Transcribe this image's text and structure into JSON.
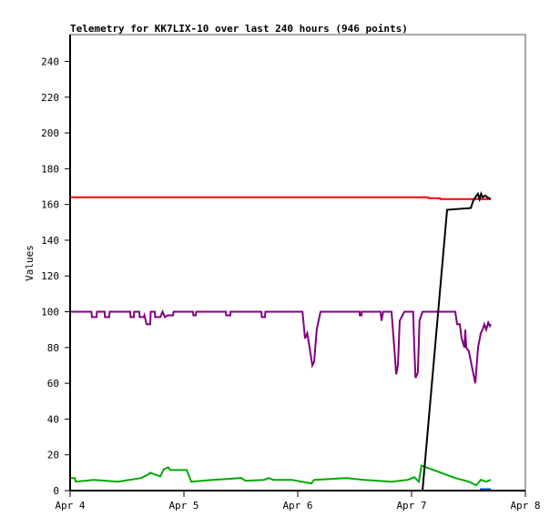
{
  "chart_data": {
    "type": "line",
    "title": "Telemetry for KK7LIX-10 over last 240 hours (946 points)",
    "xlabel": "",
    "ylabel": "Values",
    "xlim": [
      "Apr 4 00:00",
      "Apr 8 00:00"
    ],
    "ylim": [
      0,
      255
    ],
    "x_ticks": [
      "Apr 4",
      "Apr 5",
      "Apr 6",
      "Apr 7",
      "Apr 8"
    ],
    "y_ticks": [
      0,
      20,
      40,
      60,
      80,
      100,
      120,
      140,
      160,
      180,
      200,
      220,
      240
    ],
    "grid": false,
    "legend": "none",
    "series": [
      {
        "color": "#ff0000",
        "points": [
          [
            "Apr 4 00:00",
            164
          ],
          [
            "Apr 7 03:30",
            164
          ],
          [
            "Apr 7 03:35",
            163.5
          ],
          [
            "Apr 7 06:00",
            163.5
          ],
          [
            "Apr 7 06:05",
            163
          ],
          [
            "Apr 7 16:42",
            163
          ]
        ]
      },
      {
        "color": "#800080",
        "points": [
          [
            "Apr 4 00:00",
            100
          ],
          [
            "Apr 4 04:30",
            100
          ],
          [
            "Apr 4 04:36",
            97
          ],
          [
            "Apr 4 05:34",
            97
          ],
          [
            "Apr 4 05:40",
            100
          ],
          [
            "Apr 4 07:18",
            100
          ],
          [
            "Apr 4 07:20",
            97
          ],
          [
            "Apr 4 08:15",
            97
          ],
          [
            "Apr 4 08:20",
            100
          ],
          [
            "Apr 4 12:40",
            100
          ],
          [
            "Apr 4 12:45",
            97
          ],
          [
            "Apr 4 13:26",
            97
          ],
          [
            "Apr 4 13:30",
            100
          ],
          [
            "Apr 4 14:35",
            100
          ],
          [
            "Apr 4 14:40",
            97
          ],
          [
            "Apr 4 15:33",
            97
          ],
          [
            "Apr 4 15:40",
            98
          ],
          [
            "Apr 4 16:08",
            93
          ],
          [
            "Apr 4 16:54",
            93
          ],
          [
            "Apr 4 17:00",
            100
          ],
          [
            "Apr 4 17:51",
            100
          ],
          [
            "Apr 4 17:55",
            97
          ],
          [
            "Apr 4 19:00",
            97
          ],
          [
            "Apr 4 19:30",
            100
          ],
          [
            "Apr 4 19:58",
            97
          ],
          [
            "Apr 4 20:32",
            98
          ],
          [
            "Apr 4 21:42",
            98
          ],
          [
            "Apr 4 21:50",
            100
          ],
          [
            "Apr 5 01:55",
            100
          ],
          [
            "Apr 5 02:00",
            98
          ],
          [
            "Apr 5 02:30",
            98
          ],
          [
            "Apr 5 02:35",
            100
          ],
          [
            "Apr 5 08:50",
            100
          ],
          [
            "Apr 5 08:55",
            98
          ],
          [
            "Apr 5 09:48",
            98
          ],
          [
            "Apr 5 09:50",
            100
          ],
          [
            "Apr 5 16:19",
            100
          ],
          [
            "Apr 5 16:25",
            97
          ],
          [
            "Apr 5 17:05",
            97
          ],
          [
            "Apr 5 17:10",
            100
          ],
          [
            "Apr 6 01:00",
            100
          ],
          [
            "Apr 6 01:32",
            85
          ],
          [
            "Apr 6 02:00",
            88
          ],
          [
            "Apr 6 02:30",
            80
          ],
          [
            "Apr 6 03:04",
            70
          ],
          [
            "Apr 6 03:27",
            72
          ],
          [
            "Apr 6 04:00",
            90
          ],
          [
            "Apr 6 04:48",
            100
          ],
          [
            "Apr 6 13:03",
            100
          ],
          [
            "Apr 6 13:05",
            98
          ],
          [
            "Apr 6 13:26",
            98
          ],
          [
            "Apr 6 13:30",
            100
          ],
          [
            "Apr 6 17:28",
            100
          ],
          [
            "Apr 6 17:40",
            95
          ],
          [
            "Apr 6 18:00",
            100
          ],
          [
            "Apr 6 19:46",
            100
          ],
          [
            "Apr 6 20:21",
            80
          ],
          [
            "Apr 6 20:45",
            65
          ],
          [
            "Apr 6 21:07",
            70
          ],
          [
            "Apr 6 21:30",
            95
          ],
          [
            "Apr 6 22:28",
            100
          ],
          [
            "Apr 7 00:20",
            100
          ],
          [
            "Apr 7 00:35",
            80
          ],
          [
            "Apr 7 00:50",
            63
          ],
          [
            "Apr 7 01:20",
            66
          ],
          [
            "Apr 7 01:40",
            95
          ],
          [
            "Apr 7 02:18",
            100
          ],
          [
            "Apr 7 09:13",
            100
          ],
          [
            "Apr 7 09:36",
            93
          ],
          [
            "Apr 7 10:11",
            93
          ],
          [
            "Apr 7 10:34",
            85
          ],
          [
            "Apr 7 11:08",
            80
          ],
          [
            "Apr 7 11:20",
            90
          ],
          [
            "Apr 7 11:31",
            80
          ],
          [
            "Apr 7 12:05",
            78
          ],
          [
            "Apr 7 12:17",
            75
          ],
          [
            "Apr 7 13:03",
            65
          ],
          [
            "Apr 7 13:26",
            60
          ],
          [
            "Apr 7 14:01",
            80
          ],
          [
            "Apr 7 14:36",
            88
          ],
          [
            "Apr 7 14:59",
            90
          ],
          [
            "Apr 7 15:20",
            93
          ],
          [
            "Apr 7 15:45",
            90
          ],
          [
            "Apr 7 16:10",
            94
          ],
          [
            "Apr 7 16:31",
            92
          ],
          [
            "Apr 7 16:42",
            93
          ]
        ]
      },
      {
        "color": "#00aa00",
        "points": [
          [
            "Apr 4 00:00",
            7
          ],
          [
            "Apr 4 01:00",
            7
          ],
          [
            "Apr 4 01:10",
            5
          ],
          [
            "Apr 4 05:00",
            6
          ],
          [
            "Apr 4 10:00",
            5
          ],
          [
            "Apr 4 15:00",
            7
          ],
          [
            "Apr 4 16:30",
            9
          ],
          [
            "Apr 4 16:54",
            10
          ],
          [
            "Apr 4 17:51",
            9
          ],
          [
            "Apr 4 19:00",
            8
          ],
          [
            "Apr 4 19:48",
            12
          ],
          [
            "Apr 4 20:42",
            13
          ],
          [
            "Apr 4 21:06",
            11.5
          ],
          [
            "Apr 5 00:35",
            11.5
          ],
          [
            "Apr 5 01:32",
            5
          ],
          [
            "Apr 5 06:00",
            6
          ],
          [
            "Apr 5 12:06",
            7
          ],
          [
            "Apr 5 13:00",
            5.5
          ],
          [
            "Apr 5 16:54",
            6
          ],
          [
            "Apr 5 17:51",
            7
          ],
          [
            "Apr 5 18:50",
            6
          ],
          [
            "Apr 5 22:40",
            6
          ],
          [
            "Apr 6 02:52",
            4
          ],
          [
            "Apr 6 03:27",
            6
          ],
          [
            "Apr 6 10:10",
            7
          ],
          [
            "Apr 6 14:00",
            6
          ],
          [
            "Apr 6 19:46",
            5
          ],
          [
            "Apr 6 23:14",
            6
          ],
          [
            "Apr 7 00:35",
            7.5
          ],
          [
            "Apr 7 01:32",
            5
          ],
          [
            "Apr 7 02:06",
            14
          ],
          [
            "Apr 7 09:13",
            7
          ],
          [
            "Apr 7 12:05",
            5
          ],
          [
            "Apr 7 13:38",
            3
          ],
          [
            "Apr 7 14:36",
            6
          ],
          [
            "Apr 7 15:45",
            5
          ],
          [
            "Apr 7 16:42",
            6
          ]
        ]
      },
      {
        "color": "#000000",
        "points": [
          [
            "Apr 4 00:00",
            0
          ],
          [
            "Apr 7 02:18",
            0
          ],
          [
            "Apr 7 07:29",
            157
          ],
          [
            "Apr 7 12:29",
            158
          ],
          [
            "Apr 7 13:00",
            162
          ],
          [
            "Apr 7 13:26",
            164
          ],
          [
            "Apr 7 14:00",
            166
          ],
          [
            "Apr 7 14:20",
            163
          ],
          [
            "Apr 7 14:40",
            166
          ],
          [
            "Apr 7 15:00",
            164
          ],
          [
            "Apr 7 15:30",
            165
          ],
          [
            "Apr 7 16:00",
            164
          ],
          [
            "Apr 7 16:42",
            163
          ]
        ]
      },
      {
        "color": "#0066cc",
        "points": [
          [
            "Apr 7 02:18",
            0
          ],
          [
            "Apr 7 14:30",
            0
          ],
          [
            "Apr 7 14:35",
            0.8
          ],
          [
            "Apr 7 16:42",
            0.8
          ]
        ]
      }
    ]
  }
}
